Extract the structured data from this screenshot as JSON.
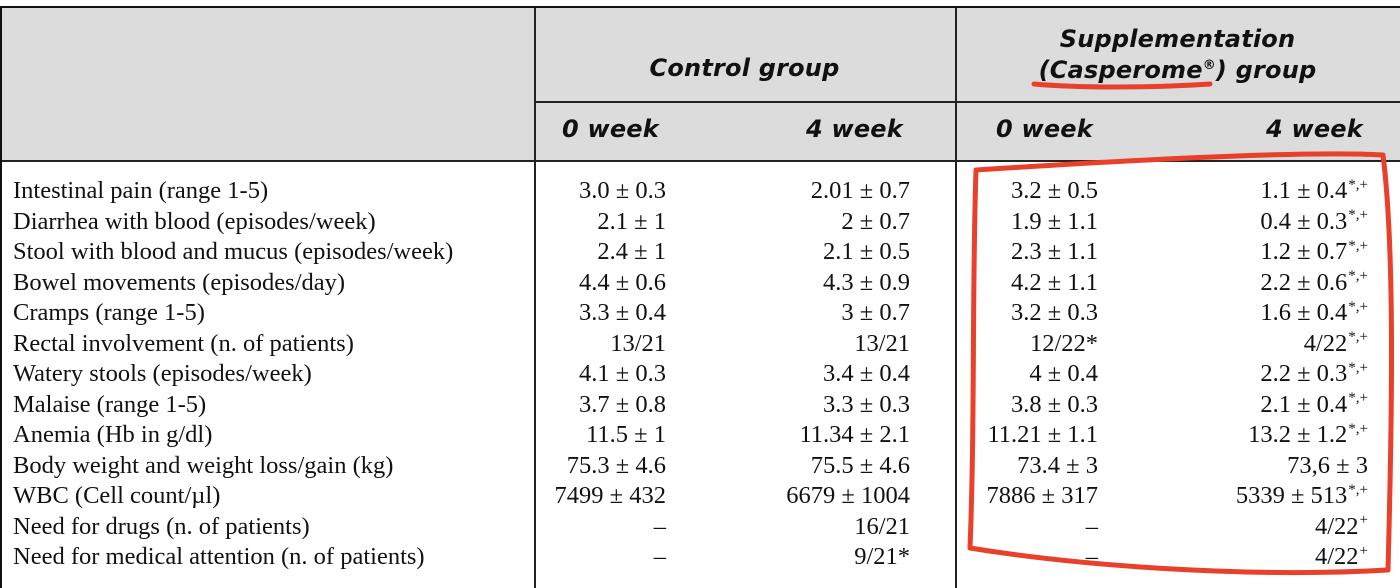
{
  "header": {
    "control_group": "Control group",
    "supplementation_line1": "Supplementation",
    "supplementation_line2_prefix": "(Casperome",
    "supplementation_reg": "®",
    "supplementation_line2_suffix": ") group",
    "weeks": [
      "0 week",
      "4 week",
      "0 week",
      "4 week"
    ]
  },
  "rows": [
    {
      "label": "Intestinal pain (range 1-5)",
      "values": [
        "3.0 ± 0.3",
        "2.01 ± 0.7",
        "3.2 ± 0.5",
        "1.1 ± 0.4"
      ],
      "marks": [
        "",
        "",
        "",
        "*,+"
      ]
    },
    {
      "label": "Diarrhea with blood (episodes/week)",
      "values": [
        "2.1 ± 1",
        "2 ± 0.7",
        "1.9 ± 1.1",
        "0.4 ± 0.3"
      ],
      "marks": [
        "",
        "",
        "",
        "*,+"
      ]
    },
    {
      "label": "Stool with blood and mucus (episodes/week)",
      "values": [
        "2.4 ± 1",
        "2.1 ± 0.5",
        "2.3 ± 1.1",
        "1.2 ± 0.7"
      ],
      "marks": [
        "",
        "",
        "",
        "*,+"
      ]
    },
    {
      "label": "Bowel movements (episodes/day)",
      "values": [
        "4.4 ± 0.6",
        "4.3 ± 0.9",
        "4.2 ± 1.1",
        "2.2 ± 0.6"
      ],
      "marks": [
        "",
        "",
        "",
        "*,+"
      ]
    },
    {
      "label": "Cramps (range 1-5)",
      "values": [
        "3.3 ± 0.4",
        "3 ± 0.7",
        "3.2 ± 0.3",
        "1.6 ± 0.4"
      ],
      "marks": [
        "",
        "",
        "",
        "*,+"
      ]
    },
    {
      "label": "Rectal involvement (n. of patients)",
      "values": [
        "13/21",
        "13/21",
        "12/22*",
        "4/22"
      ],
      "marks": [
        "",
        "",
        "",
        "*,+"
      ]
    },
    {
      "label": "Watery stools (episodes/week)",
      "values": [
        "4.1 ± 0.3",
        "3.4 ± 0.4",
        "4 ± 0.4",
        "2.2 ± 0.3"
      ],
      "marks": [
        "",
        "",
        "",
        "*,+"
      ]
    },
    {
      "label": "Malaise (range 1-5)",
      "values": [
        "3.7 ± 0.8",
        "3.3 ± 0.3",
        "3.8 ± 0.3",
        "2.1 ± 0.4"
      ],
      "marks": [
        "",
        "",
        "",
        "*,+"
      ]
    },
    {
      "label": "Anemia (Hb in g/dl)",
      "values": [
        "11.5 ± 1",
        "11.34 ± 2.1",
        "11.21 ± 1.1",
        "13.2 ± 1.2"
      ],
      "marks": [
        "",
        "",
        "",
        "*,+"
      ]
    },
    {
      "label": "Body weight and weight loss/gain (kg)",
      "values": [
        "75.3 ± 4.6",
        "75.5 ± 4.6",
        "73.4 ± 3",
        "73,6 ± 3"
      ],
      "marks": [
        "",
        "",
        "",
        ""
      ]
    },
    {
      "label": "WBC (Cell count/µl)",
      "values": [
        "7499 ± 432",
        "6679 ± 1004",
        "7886 ± 317",
        "5339 ± 513"
      ],
      "marks": [
        "",
        "",
        "",
        "*,+"
      ]
    },
    {
      "label": "Need for drugs (n. of patients)",
      "values": [
        "–",
        "16/21",
        "–",
        "4/22"
      ],
      "marks": [
        "",
        "",
        "",
        "+"
      ]
    },
    {
      "label": "Need for medical attention (n. of patients)",
      "values": [
        "–",
        "9/21*",
        "–",
        "4/22"
      ],
      "marks": [
        "",
        "",
        "",
        "+"
      ]
    }
  ],
  "annotation_color": "#e8402a"
}
